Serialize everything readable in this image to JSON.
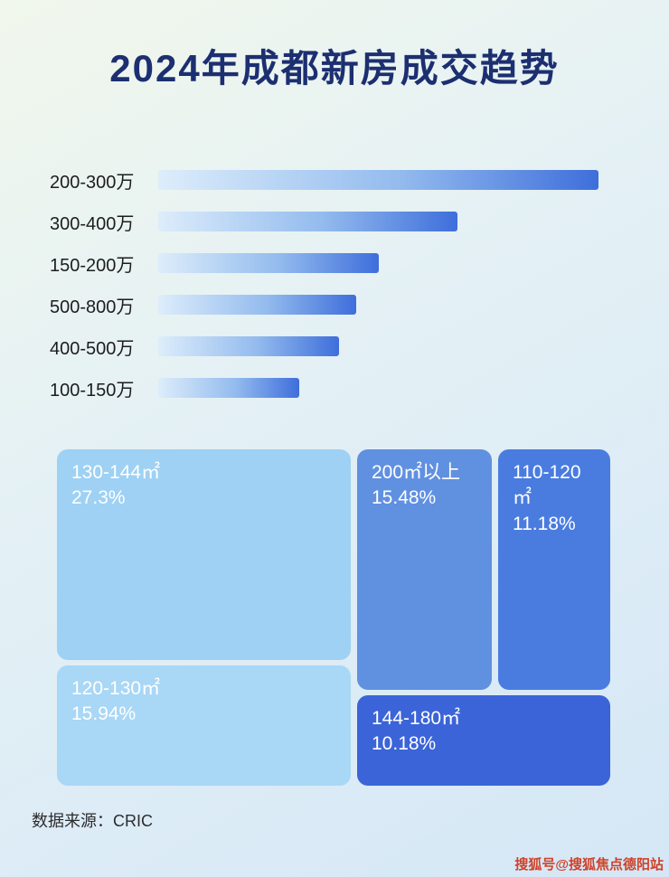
{
  "page": {
    "title": "2024年成都新房成交趋势",
    "source": "数据来源：CRIC",
    "watermark": "搜狐号@搜狐焦点德阳站"
  },
  "colors": {
    "background_start": "#f1f7ec",
    "background_mid": "#e3f0f5",
    "background_end": "#d5e7f6",
    "title": "#1c2f70",
    "bar_gradient_start": "#ddedfb",
    "bar_gradient_mid": "#93bbee",
    "bar_gradient_end": "#3e6edb",
    "watermark": "#cf4229"
  },
  "chart_data": [
    {
      "type": "bar",
      "orientation": "horizontal",
      "title": "2024年成都新房成交趋势",
      "categories": [
        "200-300万",
        "300-400万",
        "150-200万",
        "500-800万",
        "400-500万",
        "100-150万"
      ],
      "values": [
        100,
        68,
        50,
        45,
        41,
        32
      ],
      "value_note": "bars are unlabeled; values are bar lengths as % of the longest bar",
      "xlabel": "",
      "ylabel": "",
      "grid": false,
      "legend": false
    },
    {
      "type": "treemap",
      "items": [
        {
          "label": "130-144㎡",
          "value": 27.3,
          "display": "27.3%",
          "color": "#9ed1f4"
        },
        {
          "label": "120-130㎡",
          "value": 15.94,
          "display": "15.94%",
          "color": "#a9d7f6"
        },
        {
          "label": "200㎡以上",
          "value": 15.48,
          "display": "15.48%",
          "color": "#6090e0"
        },
        {
          "label": "110-120㎡",
          "value": 11.18,
          "display": "11.18%",
          "color": "#4a7ce0"
        },
        {
          "label": "144-180㎡",
          "value": 10.18,
          "display": "10.18%",
          "color": "#3b64d8"
        }
      ]
    }
  ]
}
